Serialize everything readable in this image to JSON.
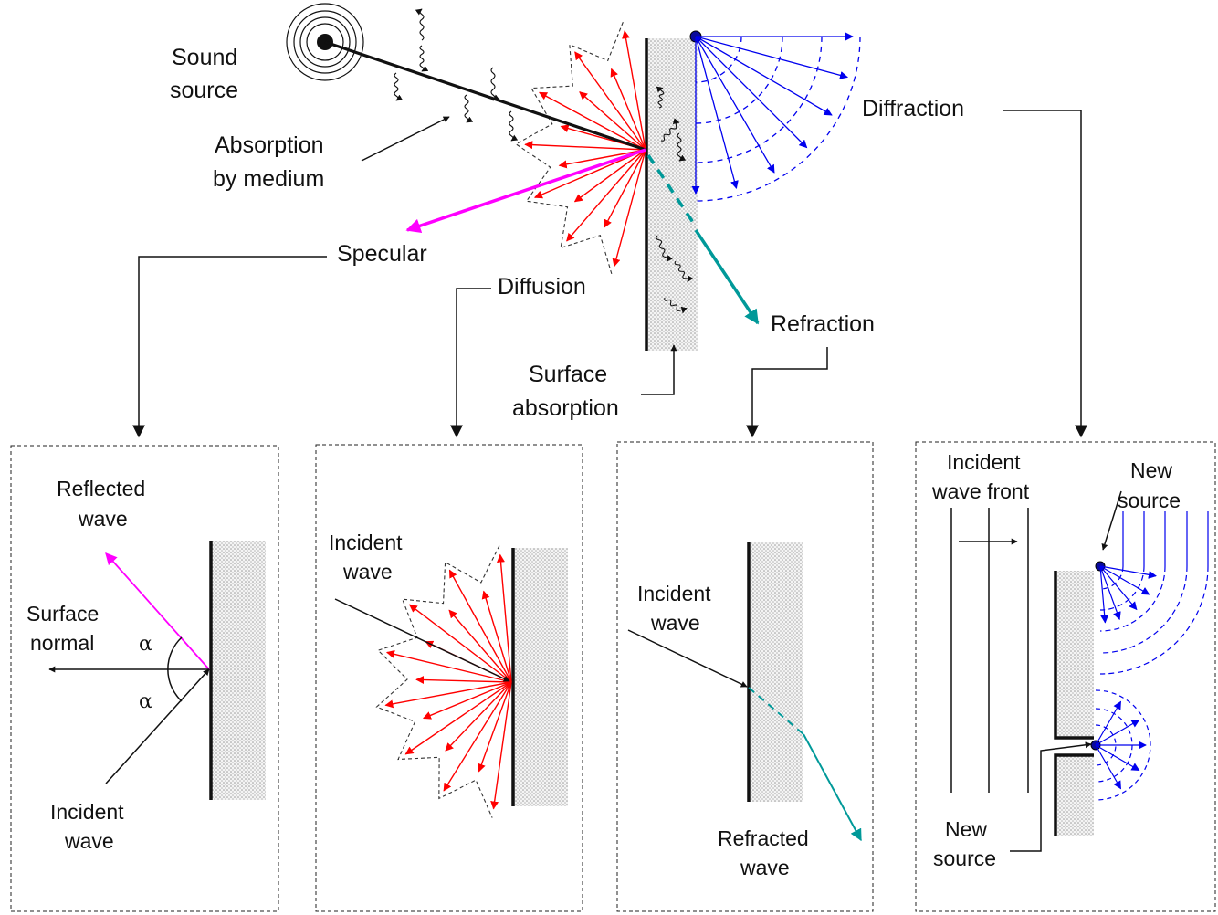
{
  "labels": {
    "sound_source_1": "Sound",
    "sound_source_2": "source",
    "absorption_medium_1": "Absorption",
    "absorption_medium_2": "by medium",
    "specular": "Specular",
    "diffusion": "Diffusion",
    "diffraction": "Diffraction",
    "refraction": "Refraction",
    "surface_absorption_1": "Surface",
    "surface_absorption_2": "absorption"
  },
  "panels": {
    "specular": {
      "reflected_1": "Reflected",
      "reflected_2": "wave",
      "normal_1": "Surface",
      "normal_2": "normal",
      "alpha_top": "α",
      "alpha_bottom": "α",
      "incident_1": "Incident",
      "incident_2": "wave"
    },
    "diffusion": {
      "incident_1": "Incident",
      "incident_2": "wave"
    },
    "refraction": {
      "incident_1": "Incident",
      "incident_2": "wave",
      "refracted_1": "Refracted",
      "refracted_2": "wave"
    },
    "diffraction": {
      "front_1": "Incident",
      "front_2": "wave front",
      "new_source_top_1": "New",
      "new_source_top_2": "source",
      "new_source_bottom_1": "New",
      "new_source_bottom_2": "source"
    }
  },
  "colors": {
    "specular": "#ff00ff",
    "diffusion": "#ff0000",
    "diffraction": "#0000ee",
    "refraction": "#009999",
    "ink": "#111111"
  }
}
